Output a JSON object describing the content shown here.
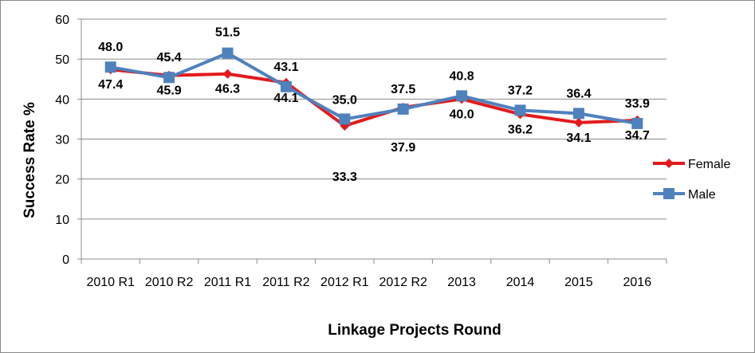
{
  "chart_data": {
    "type": "line",
    "title": "",
    "xlabel": "Linkage Projects Round",
    "ylabel": "Success Rate %",
    "ylim": [
      0,
      60
    ],
    "yticks": [
      0,
      10,
      20,
      30,
      40,
      50,
      60
    ],
    "grid": true,
    "legend_position": "right",
    "categories": [
      "2010 R1",
      "2010 R2",
      "2011 R1",
      "2011 R2",
      "2012 R1",
      "2012 R2",
      "2013",
      "2014",
      "2015",
      "2016"
    ],
    "series": [
      {
        "name": "Female",
        "color": "#e31a1c",
        "marker": "diamond",
        "values": [
          47.4,
          45.9,
          46.3,
          44.1,
          33.3,
          37.9,
          40.0,
          36.2,
          34.1,
          34.7
        ],
        "labels": [
          "47.4",
          "45.9",
          "46.3",
          "44.1",
          "33.3",
          "37.9",
          "40.0",
          "36.2",
          "34.1",
          "34.7"
        ]
      },
      {
        "name": "Male",
        "color": "#4f81bd",
        "marker": "square",
        "values": [
          48.0,
          45.4,
          51.5,
          43.1,
          35.0,
          37.5,
          40.8,
          37.2,
          36.4,
          33.9
        ],
        "labels": [
          "48.0",
          "45.4",
          "51.5",
          "43.1",
          "35.0",
          "37.5",
          "40.8",
          "37.2",
          "36.4",
          "33.9"
        ]
      }
    ]
  }
}
